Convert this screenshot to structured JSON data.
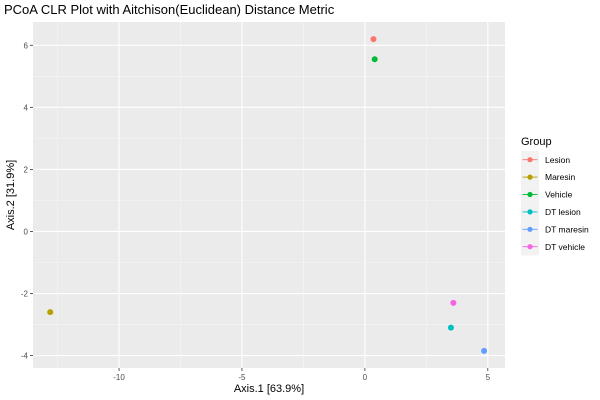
{
  "chart_data": {
    "type": "scatter",
    "title": "PCoA CLR Plot with Aitchison(Euclidean) Distance Metric",
    "xlabel": "Axis.1   [63.9%]",
    "ylabel": "Axis.2   [31.9%]",
    "xlim": [
      -13.5,
      5.7
    ],
    "ylim": [
      -4.4,
      6.75
    ],
    "x_ticks": [
      -10,
      -5,
      0,
      5
    ],
    "y_ticks": [
      -4,
      -2,
      0,
      2,
      4,
      6
    ],
    "grid": true,
    "legend": {
      "title": "Group",
      "placement": "right",
      "entries": [
        "Lesion",
        "Maresin",
        "Vehicle",
        "DT lesion",
        "DT maresin",
        "DT vehicle"
      ]
    },
    "series": [
      {
        "name": "Lesion",
        "color": "#F8766D",
        "points": [
          {
            "x": 0.35,
            "y": 6.2
          }
        ]
      },
      {
        "name": "Maresin",
        "color": "#B79F00",
        "points": [
          {
            "x": -12.8,
            "y": -2.6
          }
        ]
      },
      {
        "name": "Vehicle",
        "color": "#00BA38",
        "points": [
          {
            "x": 0.4,
            "y": 5.55
          }
        ]
      },
      {
        "name": "DT lesion",
        "color": "#00BFC4",
        "points": [
          {
            "x": 3.5,
            "y": -3.1
          }
        ]
      },
      {
        "name": "DT maresin",
        "color": "#619CFF",
        "points": [
          {
            "x": 4.85,
            "y": -3.85
          }
        ]
      },
      {
        "name": "DT vehicle",
        "color": "#F564E3",
        "points": [
          {
            "x": 3.6,
            "y": -2.3
          }
        ]
      }
    ]
  }
}
